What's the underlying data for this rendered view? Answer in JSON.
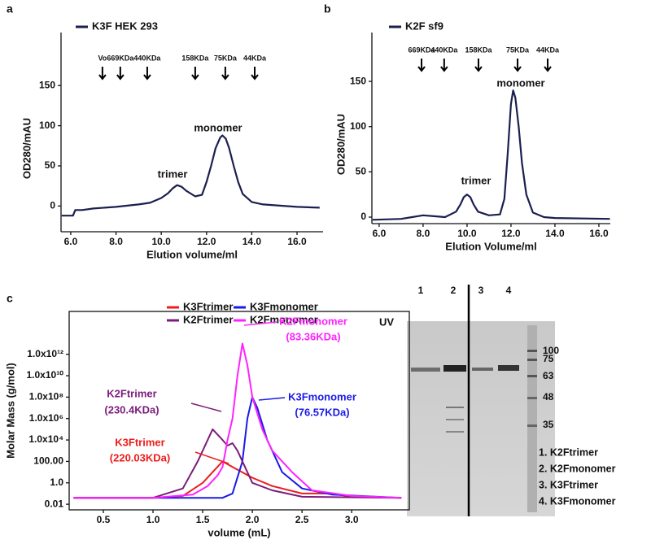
{
  "chart_data": [
    {
      "type": "line",
      "label": "a",
      "xlabel": "Elution volume/ml",
      "ylabel": "OD280/mAU",
      "xlim": [
        5.57,
        17.15
      ],
      "ylim": [
        -32,
        216
      ],
      "xticks": [
        {
          "value": 6,
          "label": "6.0"
        },
        {
          "value": 8,
          "label": "8.0"
        },
        {
          "value": 10,
          "label": "10.0"
        },
        {
          "value": 12,
          "label": "12.0"
        },
        {
          "value": 14,
          "label": "14.0"
        },
        {
          "value": 16,
          "label": "16.0"
        }
      ],
      "yticks": [
        0,
        50,
        100,
        150
      ],
      "markers": [
        {
          "label": "Vo",
          "x": 7.4
        },
        {
          "label": "669KDa",
          "x": 8.19
        },
        {
          "label": "440KDa",
          "x": 9.38
        },
        {
          "label": "158KDa",
          "x": 11.5
        },
        {
          "label": "75KDa",
          "x": 12.83
        },
        {
          "label": "44KDa",
          "x": 14.13
        }
      ],
      "annotations": [
        {
          "text": "trimer",
          "color": "#111111"
        },
        {
          "text": "monomer",
          "color": "#111111"
        }
      ],
      "series": [
        {
          "name": "K3F HEK 293",
          "color": "#1b1f4e",
          "x": [
            5.6,
            6.1,
            6.2,
            6.5,
            7,
            8,
            9,
            9.5,
            10,
            10.3,
            10.5,
            10.7,
            10.9,
            11.1,
            11.5,
            11.8,
            12,
            12.2,
            12.4,
            12.6,
            12.7,
            12.85,
            13,
            13.2,
            13.4,
            13.6,
            14,
            14.5,
            15,
            16,
            17
          ],
          "values": [
            -12,
            -12,
            -5,
            -5,
            -3,
            -1,
            2,
            4,
            10,
            16,
            22,
            26,
            24,
            19,
            12,
            14,
            30,
            50,
            72,
            85,
            88,
            84,
            72,
            50,
            30,
            15,
            5,
            2,
            1,
            -1,
            -2
          ]
        }
      ]
    },
    {
      "type": "line",
      "label": "b",
      "xlabel": "Elution Volume/ml",
      "ylabel": "OD280/mAU",
      "xlim": [
        5.67,
        16.52
      ],
      "ylim": [
        -7.2,
        204
      ],
      "xticks": [
        {
          "value": 6,
          "label": "6.0"
        },
        {
          "value": 8,
          "label": "8.0"
        },
        {
          "value": 10,
          "label": "10.0"
        },
        {
          "value": 12,
          "label": "12.0"
        },
        {
          "value": 14,
          "label": "14.0"
        },
        {
          "value": 16,
          "label": "16.0"
        }
      ],
      "yticks": [
        0,
        50,
        100,
        150
      ],
      "markers": [
        {
          "label": "669KDa",
          "x": 7.93
        },
        {
          "label": "440KDa",
          "x": 8.96
        },
        {
          "label": "158KDa",
          "x": 10.52
        },
        {
          "label": "75KDa",
          "x": 12.3
        },
        {
          "label": "44KDa",
          "x": 13.67
        }
      ],
      "annotations": [
        {
          "text": "trimer",
          "color": "#111111"
        },
        {
          "text": "monomer",
          "color": "#111111"
        }
      ],
      "series": [
        {
          "name": "K2F sf9",
          "color": "#1b1f4e",
          "x": [
            5.7,
            7,
            7.5,
            8,
            8.5,
            9,
            9.5,
            9.7,
            9.85,
            10,
            10.15,
            10.3,
            10.5,
            11,
            11.5,
            11.7,
            11.85,
            12,
            12.1,
            12.2,
            12.35,
            12.5,
            12.7,
            13,
            13.5,
            14,
            16.5
          ],
          "values": [
            -3,
            -2,
            0,
            2,
            1,
            0,
            6,
            14,
            22,
            25,
            22,
            14,
            6,
            2,
            3,
            20,
            70,
            125,
            140,
            132,
            100,
            60,
            25,
            5,
            0,
            -1,
            -2
          ]
        }
      ]
    },
    {
      "type": "line",
      "label": "c",
      "xlabel": "volume (mL)",
      "ylabel": "Molar Mass (g/mol)",
      "log_y": true,
      "xlim": [
        0.156,
        3.58
      ],
      "ylim": [
        0.003,
        1e+16
      ],
      "xticks": [
        0.5,
        {
          "value": 1,
          "label": "1.0"
        },
        1.5,
        {
          "value": 2,
          "label": "2.0"
        },
        2.5,
        {
          "value": 3,
          "label": "3.0"
        }
      ],
      "yticks": [
        0.01,
        {
          "value": 1,
          "label": "1.0"
        },
        {
          "value": 100,
          "label": "100.00"
        },
        {
          "value": 10000,
          "label": "1.0x10⁴"
        },
        {
          "value": 1000000,
          "label": "1.0x10⁶"
        },
        {
          "value": 100000000,
          "label": "1.0x10⁸"
        },
        {
          "value": 10000000000,
          "label": "1.0x10¹⁰"
        },
        {
          "value": 1000000000000,
          "label": "1.0x10¹²"
        }
      ],
      "annotations": [
        {
          "text": "UV",
          "color": "#111111"
        },
        {
          "text": "K2Fmonomer",
          "color": "#ff22ff"
        },
        {
          "text": "(83.36KDa)",
          "color": "#ff22ff"
        },
        {
          "text": "K3Fmonomer",
          "color": "#1a1ae6"
        },
        {
          "text": "(76.57KDa)",
          "color": "#1a1ae6"
        },
        {
          "text": "K2Ftrimer",
          "color": "#7b1c7b"
        },
        {
          "text": "(230.4KDa)",
          "color": "#7b1c7b"
        },
        {
          "text": "K3Ftrimer",
          "color": "#ee1c1c"
        },
        {
          "text": "(220.03KDa)",
          "color": "#ee1c1c"
        }
      ],
      "series": [
        {
          "name": "K3Ftrimer",
          "color": "#ee1c1c",
          "x": [
            0.2,
            1.0,
            1.3,
            1.5,
            1.6,
            1.7,
            1.8,
            2.0,
            2.2,
            2.5,
            2.7,
            2.8,
            3.0,
            3.5
          ],
          "values": [
            0.04,
            0.04,
            0.06,
            1,
            10,
            100,
            30,
            3,
            0.5,
            0.1,
            0.1,
            0.1,
            0.05,
            0.04
          ]
        },
        {
          "name": "K3Fmonomer",
          "color": "#1a1ae6",
          "x": [
            0.2,
            1.7,
            1.8,
            1.9,
            1.95,
            2.0,
            2.05,
            2.15,
            2.3,
            2.5,
            2.8,
            3.5
          ],
          "values": [
            0.04,
            0.04,
            0.1,
            100,
            1000000,
            100000000,
            10000000,
            10000,
            10,
            0.3,
            0.08,
            0.04
          ]
        },
        {
          "name": "K2Ftrimer",
          "color": "#7b1c7b",
          "x": [
            0.2,
            1.0,
            1.3,
            1.45,
            1.6,
            1.7,
            1.75,
            1.8,
            1.85,
            1.9,
            2.0,
            2.2,
            2.5,
            3.5
          ],
          "values": [
            0.04,
            0.04,
            0.3,
            100,
            100000,
            10000,
            3000,
            5000,
            1000,
            100,
            1,
            0.2,
            0.05,
            0.04
          ]
        },
        {
          "name": "K2Fmonomer",
          "color": "#ff22ff",
          "x": [
            0.2,
            1.0,
            1.4,
            1.55,
            1.65,
            1.7,
            1.75,
            1.8,
            1.85,
            1.9,
            1.95,
            2.0,
            2.1,
            2.2,
            2.4,
            2.6,
            3.0,
            3.5
          ],
          "values": [
            0.04,
            0.04,
            0.08,
            0.5,
            5,
            30,
            10000,
            1000000,
            10000000000,
            10000000000000,
            100000000000,
            100000000,
            100000,
            1000,
            10,
            0.2,
            0.06,
            0.04
          ]
        }
      ]
    }
  ],
  "gel": {
    "lanes": [
      "1",
      "2",
      "3",
      "4"
    ],
    "ladder": [
      100,
      75,
      63,
      48,
      35
    ],
    "legend": [
      "1. K2Ftrimer",
      "2. K2Fmonomer",
      "3. K3Ftrimer",
      "4. K3Fmonomer"
    ]
  }
}
